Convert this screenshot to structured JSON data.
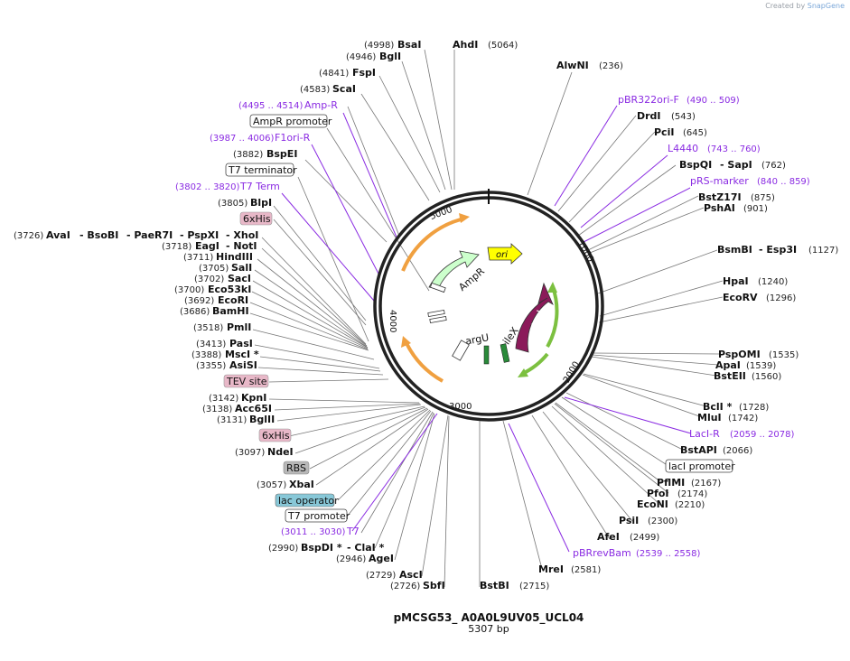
{
  "credit": {
    "prefix": "Created by",
    "brand": "SnapGene"
  },
  "title": "pMCSG53_ A0A0L9UV05_UCL04",
  "size_label": "5307 bp",
  "ticks": [
    "1000",
    "2000",
    "3000",
    "4000",
    "5000"
  ],
  "arcs": {
    "ori": "ori",
    "ampr": "AmpR",
    "laci": "lacI",
    "argu": "argU",
    "ilex": "ileX"
  },
  "colors": {
    "backbone": "#222222",
    "primer": "#8a2be2",
    "ampr": "#ccffcc",
    "ori": "#ffff00",
    "laci": "#8b1a5a",
    "f1ori": "#f0a040",
    "lacgreen": "#7cc040",
    "misc_box": "#e8b8c8",
    "rbs_box": "#b8b8b8",
    "operator_box": "#88c8d8"
  },
  "labels": {
    "bsai": "BsaI",
    "bsai_pos": "(4998)",
    "bgli": "BglI",
    "bgli_pos": "(4946)",
    "ahdi": "AhdI",
    "ahdi_pos": "(5064)",
    "fspi": "FspI",
    "fspi_pos": "(4841)",
    "scai": "ScaI",
    "scai_pos": "(4583)",
    "alwni": "AlwNI",
    "alwni_pos": "(236)",
    "ampr_primer": "Amp-R",
    "ampr_primer_pos": "(4495 .. 4514)",
    "ampr_promoter": "AmpR promoter",
    "f1ori_primer": "F1ori-R",
    "f1ori_primer_pos": "(3987 .. 4006)",
    "bspei": "BspEI",
    "bspei_pos": "(3882)",
    "t7_terminator": "T7 terminator",
    "t7term": "T7 Term",
    "t7term_pos": "(3802 .. 3820)",
    "blpi": "BlpI",
    "blpi_pos": "(3805)",
    "his1": "6xHis",
    "aval": "AvaI",
    "aval_pos": "(3726)",
    "bsobi": "- BsoBI",
    "paer7i": "- PaeR7I",
    "pspxi": "- PspXI",
    "xhoi": "- XhoI",
    "eagi": "EagI",
    "eagi_pos": "(3718)",
    "noti": "- NotI",
    "hindiii": "HindIII",
    "hindiii_pos": "(3711)",
    "sali": "SalI",
    "sali_pos": "(3705)",
    "saci": "SacI",
    "saci_pos": "(3702)",
    "eco53ki": "Eco53kI",
    "eco53ki_pos": "(3700)",
    "ecori": "EcoRI",
    "ecori_pos": "(3692)",
    "bamhi": "BamHI",
    "bamhi_pos": "(3686)",
    "pmli": "PmlI",
    "pmli_pos": "(3518)",
    "pasi": "PasI",
    "pasi_pos": "(3413)",
    "msci": "MscI *",
    "msci_pos": "(3388)",
    "asisi": "AsiSI",
    "asisi_pos": "(3355)",
    "tev": "TEV site",
    "kpni": "KpnI",
    "kpni_pos": "(3142)",
    "acc65i": "Acc65I",
    "acc65i_pos": "(3138)",
    "bglii": "BglII",
    "bglii_pos": "(3131)",
    "his2": "6xHis",
    "ndei": "NdeI",
    "ndei_pos": "(3097)",
    "rbs": "RBS",
    "xbai": "XbaI",
    "xbai_pos": "(3057)",
    "lacop": "lac operator",
    "t7prom": "T7 promoter",
    "t7": "T7",
    "t7_pos": "(3011 .. 3030)",
    "bspdi": "BspDI *",
    "bspdi_pos": "(2990)",
    "clai": "- ClaI *",
    "agei": "AgeI",
    "agei_pos": "(2946)",
    "asci": "AscI",
    "asci_pos": "(2729)",
    "sbfi": "SbfI",
    "sbfi_pos": "(2726)",
    "bstbi": "BstBI",
    "bstbi_pos": "(2715)",
    "mrei": "MreI",
    "mrei_pos": "(2581)",
    "pbrrev": "pBRrevBam",
    "pbrrev_pos": "(2539 .. 2558)",
    "afei": "AfeI",
    "afei_pos": "(2499)",
    "psii": "PsiI",
    "psii_pos": "(2300)",
    "ecoNI": "EcoNI",
    "ecoNI_pos": "(2210)",
    "pfoi": "PfoI",
    "pfoi_pos": "(2174)",
    "pflmi": "PflMI",
    "pflmi_pos": "(2167)",
    "laci_prom": "lacI promoter",
    "bstapi": "BstAPI",
    "bstapi_pos": "(2066)",
    "lacir": "LacI-R",
    "lacir_pos": "(2059 .. 2078)",
    "mlui": "MluI",
    "mlui_pos": "(1742)",
    "bcli": "BclI *",
    "bcli_pos": "(1728)",
    "bsteii": "BstEII",
    "bsteii_pos": "(1560)",
    "apai": "ApaI",
    "apai_pos": "(1539)",
    "pspomi": "PspOMI",
    "pspomi_pos": "(1535)",
    "ecorv": "EcoRV",
    "ecorv_pos": "(1296)",
    "hpai": "HpaI",
    "hpai_pos": "(1240)",
    "bsmbi": "BsmBI",
    "bsmbi_pos": "(1127)",
    "esp3i": "- Esp3I",
    "pshai": "PshAI",
    "pshai_pos": "(901)",
    "bstz17i": "BstZ17I",
    "bstz17i_pos": "(875)",
    "prs": "pRS-marker",
    "prs_pos": "(840 .. 859)",
    "bspqi": "BspQI",
    "bspqi_pos": "(762)",
    "sapi": "- SapI",
    "l4440": "L4440",
    "l4440_pos": "(743 .. 760)",
    "pcii": "PciI",
    "pcii_pos": "(645)",
    "drdi": "DrdI",
    "drdi_pos": "(543)",
    "pbr322": "pBR322ori-F",
    "pbr322_pos": "(490 .. 509)"
  }
}
